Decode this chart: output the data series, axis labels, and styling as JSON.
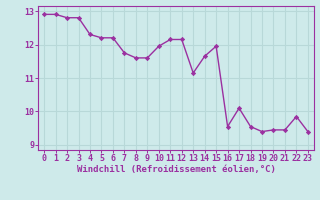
{
  "x": [
    0,
    1,
    2,
    3,
    4,
    5,
    6,
    7,
    8,
    9,
    10,
    11,
    12,
    13,
    14,
    15,
    16,
    17,
    18,
    19,
    20,
    21,
    22,
    23
  ],
  "y": [
    12.9,
    12.9,
    12.8,
    12.8,
    12.3,
    12.2,
    12.2,
    11.75,
    11.6,
    11.6,
    11.95,
    12.15,
    12.15,
    11.15,
    11.65,
    11.95,
    9.55,
    10.1,
    9.55,
    9.4,
    9.45,
    9.45,
    9.85,
    9.4
  ],
  "line_color": "#9b30a0",
  "marker": "D",
  "marker_size": 2.2,
  "linewidth": 1.0,
  "xlabel": "Windchill (Refroidissement éolien,°C)",
  "xlim": [
    -0.5,
    23.5
  ],
  "ylim": [
    8.85,
    13.15
  ],
  "yticks": [
    9,
    10,
    11,
    12,
    13
  ],
  "xticks": [
    0,
    1,
    2,
    3,
    4,
    5,
    6,
    7,
    8,
    9,
    10,
    11,
    12,
    13,
    14,
    15,
    16,
    17,
    18,
    19,
    20,
    21,
    22,
    23
  ],
  "bg_color": "#ceeaea",
  "grid_color": "#b8d8d8",
  "line_color_spine": "#9b30a0",
  "xlabel_fontsize": 6.5,
  "tick_fontsize": 6.0,
  "label_color": "#9b30a0"
}
